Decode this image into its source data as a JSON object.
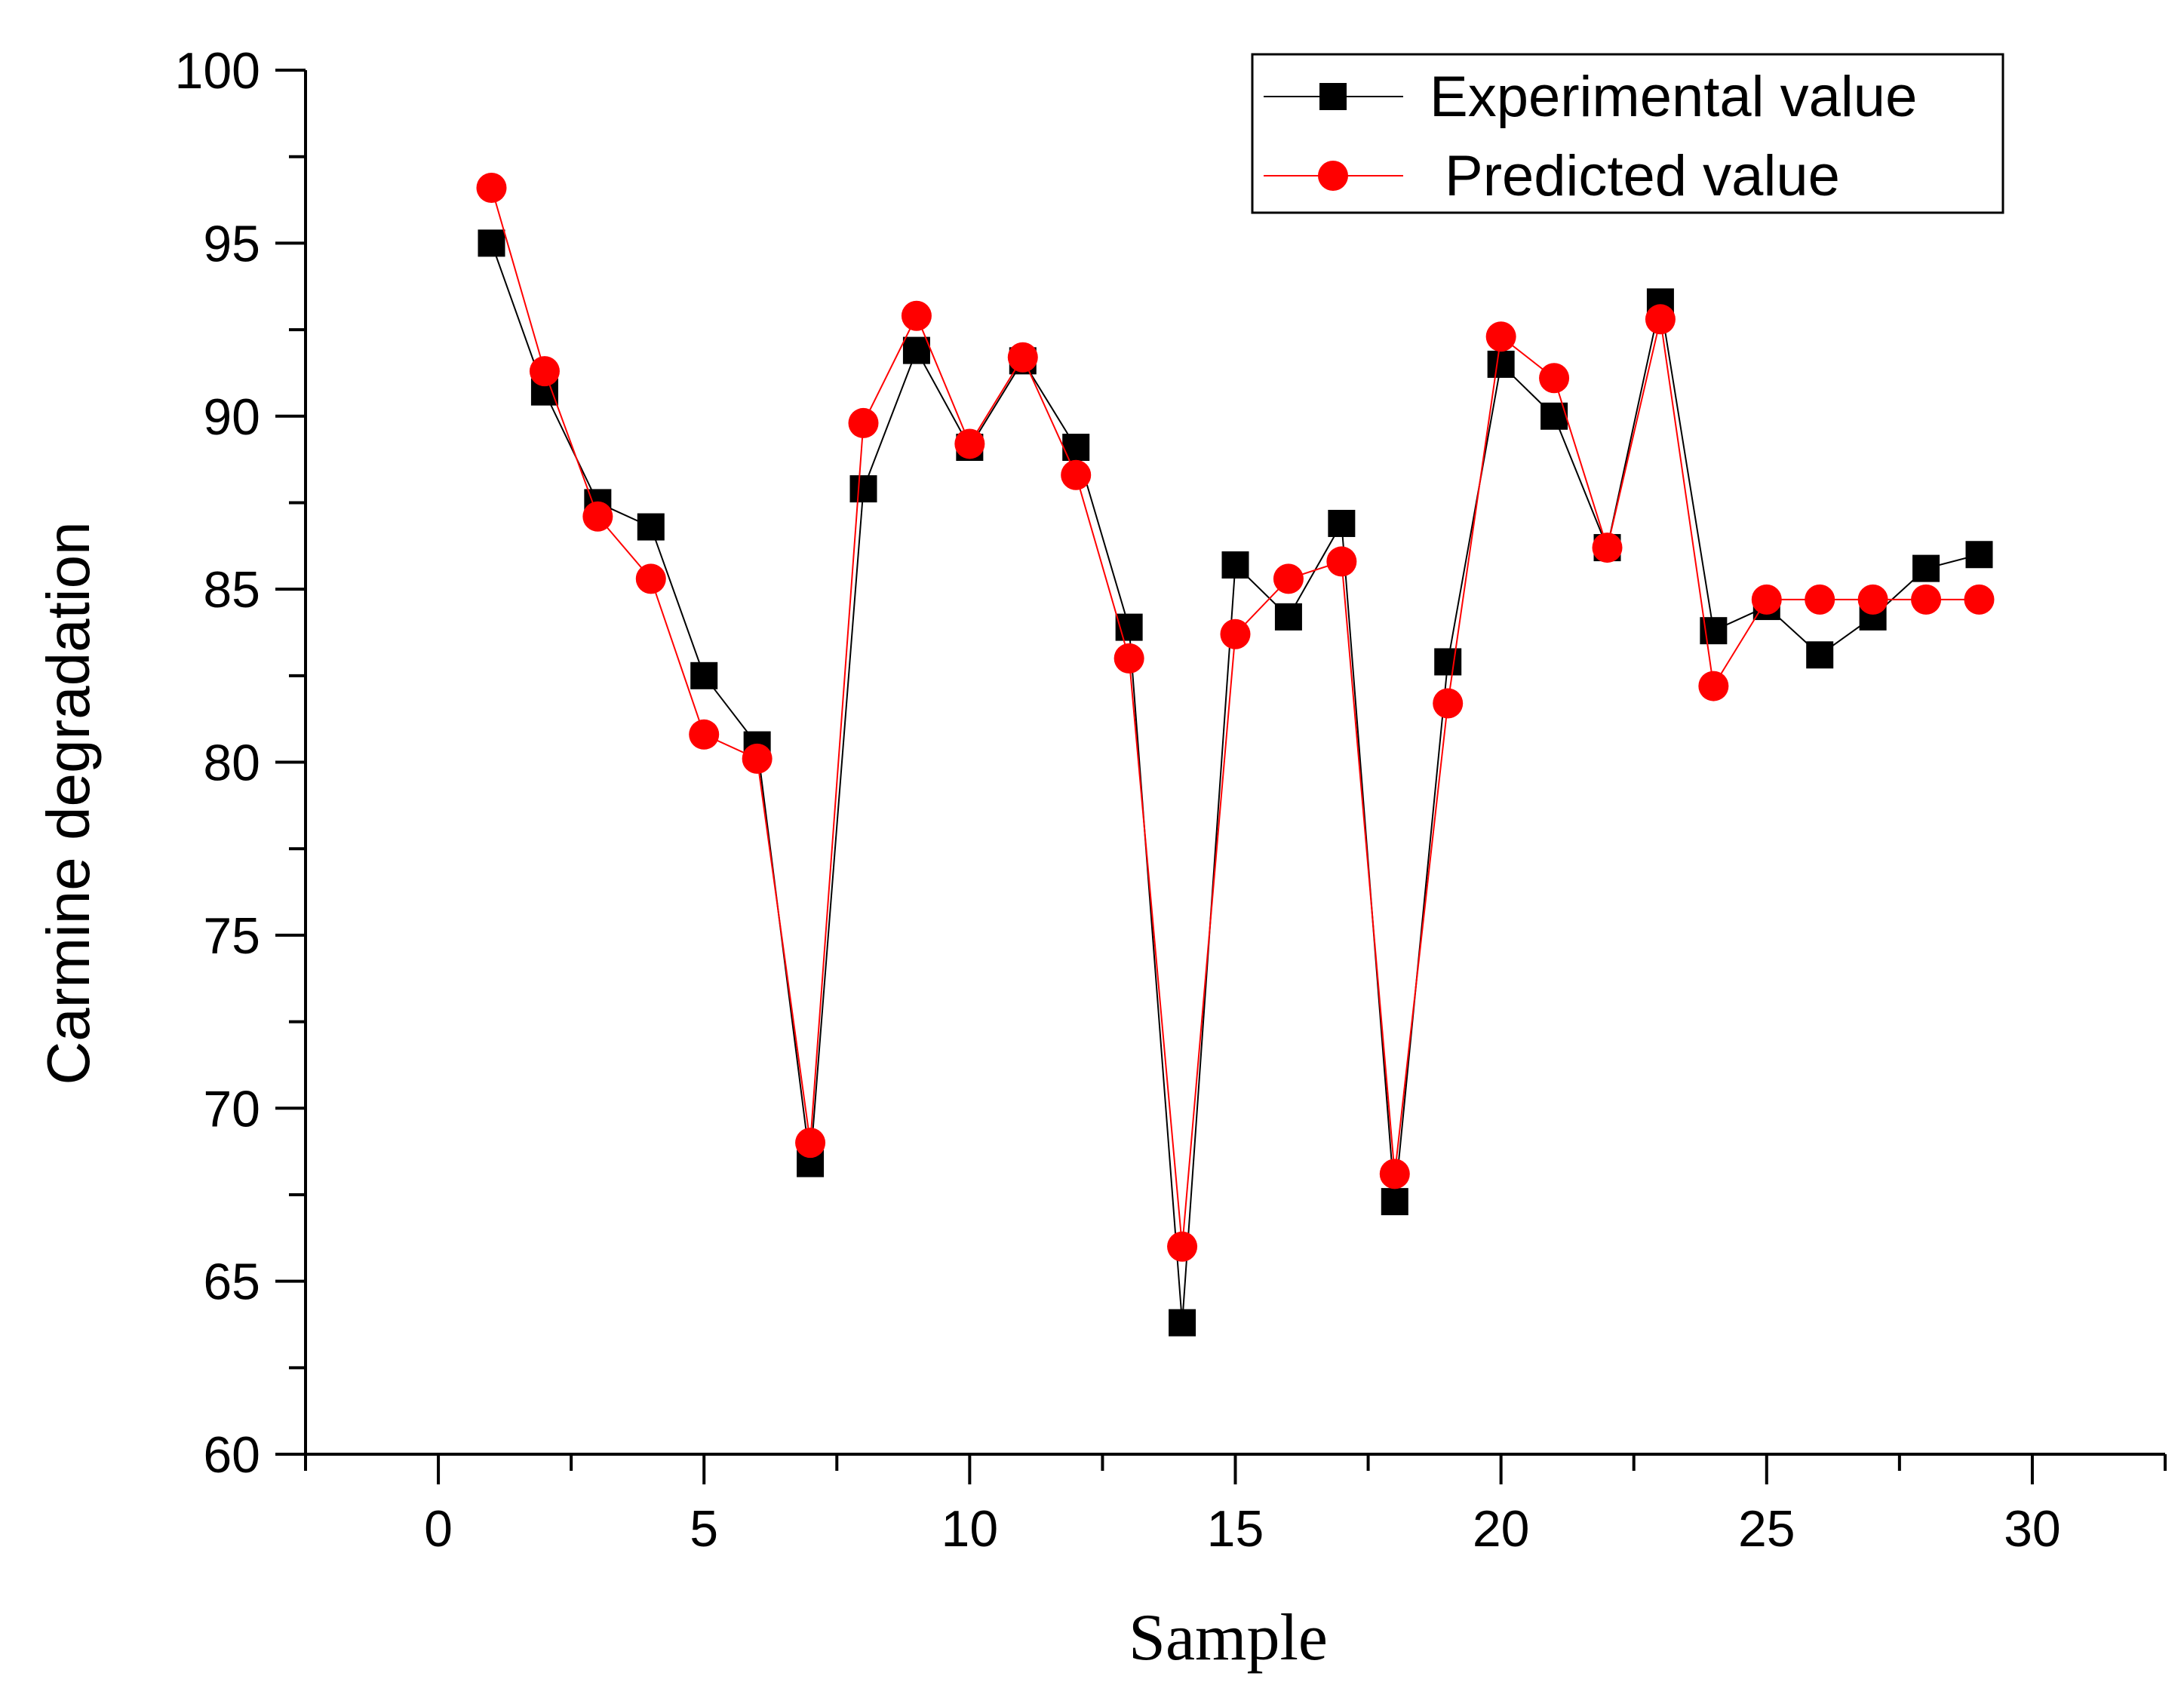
{
  "chart_data": {
    "type": "line",
    "title": "",
    "xlabel": "Sample",
    "ylabel": "Carmine degradation",
    "xlim": [
      -2.5,
      32.5
    ],
    "ylim": [
      60,
      100
    ],
    "x_ticks": [
      0,
      5,
      10,
      15,
      20,
      25,
      30
    ],
    "x_tick_labels": [
      "0",
      "5",
      "10",
      "15",
      "20",
      "25",
      "30"
    ],
    "x_minor_ticks": [
      -2.5,
      2.5,
      7.5,
      12.5,
      17.5,
      22.5,
      27.5,
      32.5
    ],
    "y_ticks": [
      60,
      65,
      70,
      75,
      80,
      85,
      90,
      95,
      100
    ],
    "y_tick_labels": [
      "60",
      "65",
      "70",
      "75",
      "80",
      "85",
      "90",
      "95",
      "100"
    ],
    "y_minor_ticks": [
      62.5,
      67.5,
      72.5,
      77.5,
      82.5,
      87.5,
      92.5,
      97.5
    ],
    "grid": false,
    "legend_position": "top-right",
    "x": [
      1,
      2,
      3,
      4,
      5,
      6,
      7,
      8,
      9,
      10,
      11,
      12,
      13,
      14,
      15,
      16,
      17,
      18,
      19,
      20,
      21,
      22,
      23,
      24,
      25,
      26,
      27,
      28,
      29
    ],
    "series": [
      {
        "name": "Experimental value",
        "marker": "square",
        "color": "#000000",
        "values": [
          95.0,
          90.7,
          87.5,
          86.8,
          82.5,
          80.5,
          68.4,
          87.9,
          91.9,
          89.1,
          91.6,
          89.1,
          83.9,
          63.8,
          85.7,
          84.2,
          86.9,
          67.3,
          82.9,
          91.5,
          90.0,
          86.2,
          93.3,
          83.8,
          84.5,
          83.1,
          84.2,
          85.6,
          86.0
        ]
      },
      {
        "name": "Predicted value",
        "marker": "circle",
        "color": "#ff0000",
        "values": [
          96.6,
          91.3,
          87.1,
          85.3,
          80.8,
          80.1,
          69.0,
          89.8,
          92.9,
          89.2,
          91.7,
          88.3,
          83.0,
          66.0,
          83.7,
          85.3,
          85.8,
          68.1,
          81.7,
          92.3,
          91.1,
          86.2,
          92.8,
          82.2,
          84.7,
          84.7,
          84.7,
          84.7,
          84.7
        ]
      }
    ]
  }
}
